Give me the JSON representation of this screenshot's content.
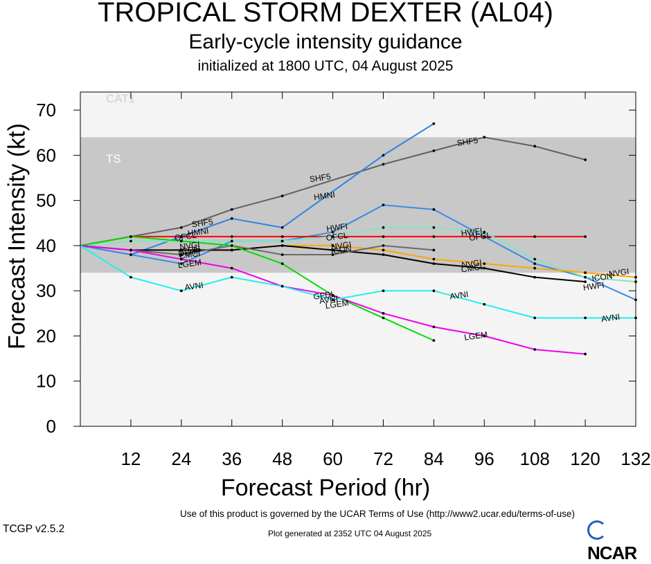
{
  "header": {
    "title": "TROPICAL STORM DEXTER (AL04)",
    "subtitle": "Early-cycle intensity guidance",
    "initialized": "initialized at 1800 UTC, 04 August 2025"
  },
  "footer": {
    "terms": "Use of this product is governed by the UCAR Terms of Use (http://www2.ucar.edu/terms-of-use)",
    "version": "TCGP v2.5.2",
    "generated": "Plot generated at 2352 UTC   04 August 2025",
    "logo": "NCAR"
  },
  "colors": {
    "plot_bg": "#f4f4f4",
    "ts_band": "#c8c8c8",
    "band_label": "#e6e6e6"
  },
  "chart_data": {
    "type": "line",
    "xlabel": "Forecast Period (hr)",
    "ylabel": "Forecast Intensity (kt)",
    "xlim": [
      0,
      132
    ],
    "ylim": [
      0,
      74
    ],
    "xticks": [
      12,
      24,
      36,
      48,
      60,
      72,
      84,
      96,
      108,
      120,
      132
    ],
    "yticks": [
      0,
      10,
      20,
      30,
      40,
      50,
      60,
      70
    ],
    "grid": false,
    "bands": [
      {
        "name": "TS",
        "from": 34,
        "to": 64,
        "color": "#c8c8c8"
      },
      {
        "name": "CAT1",
        "from": 64,
        "to": 74,
        "color": "#f4f4f4"
      }
    ],
    "series": [
      {
        "name": "SHF5",
        "color": "#606060",
        "x": [
          0,
          12,
          24,
          36,
          48,
          72,
          84,
          96,
          108,
          120
        ],
        "y": [
          40,
          42,
          44,
          48,
          51,
          58,
          61,
          64,
          62,
          59
        ],
        "labels": [
          [
            29,
            45
          ],
          [
            57,
            55
          ],
          [
            92,
            63
          ]
        ]
      },
      {
        "name": "HMNI",
        "color": "#2f82e6",
        "x": [
          0,
          12,
          24,
          36,
          48,
          72,
          84
        ],
        "y": [
          40,
          38,
          42,
          46,
          44,
          60,
          67
        ],
        "labels": [
          [
            28,
            43
          ],
          [
            58,
            51
          ]
        ]
      },
      {
        "name": "HWFI",
        "color": "#3a8ae8",
        "x": [
          0,
          12,
          24,
          36,
          48,
          60,
          72,
          84,
          96,
          108,
          120,
          132
        ],
        "y": [
          40,
          38,
          36,
          41,
          41,
          43,
          49,
          48,
          42,
          36,
          33,
          28
        ],
        "labels": [
          [
            61,
            44
          ],
          [
            93,
            43
          ],
          [
            122,
            31
          ]
        ]
      },
      {
        "name": "OFCL",
        "color": "#ff0000",
        "x": [
          0,
          12,
          24,
          36,
          48,
          60,
          72,
          84,
          96,
          108,
          120
        ],
        "y": [
          40,
          42,
          42,
          42,
          42,
          42,
          42,
          42,
          42,
          42,
          42
        ],
        "labels": [
          [
            25,
            42
          ],
          [
            61,
            42
          ],
          [
            95,
            42
          ]
        ]
      },
      {
        "name": "ICON",
        "color": "#7fe6c0",
        "x": [
          0,
          12,
          24,
          36,
          48,
          60,
          72,
          84,
          96,
          108,
          120,
          132
        ],
        "y": [
          40,
          41,
          41,
          41,
          41,
          42,
          44,
          44,
          43,
          37,
          33,
          32
        ],
        "labels": [
          [
            26,
            39
          ],
          [
            62,
            39
          ],
          [
            124,
            33
          ]
        ]
      },
      {
        "name": "NVGI",
        "color": "#ffa500",
        "x": [
          0,
          12,
          24,
          36,
          48,
          60,
          72,
          84,
          96,
          108,
          120,
          132
        ],
        "y": [
          40,
          39,
          39,
          39,
          40,
          40,
          39,
          37,
          36,
          35,
          34,
          33
        ],
        "labels": [
          [
            26,
            40
          ],
          [
            62,
            40
          ],
          [
            93,
            36
          ],
          [
            128,
            34
          ]
        ]
      },
      {
        "name": "CMCI",
        "color": "#000000",
        "x": [
          0,
          12,
          24,
          36,
          48,
          60,
          72,
          84,
          96,
          108,
          120
        ],
        "y": [
          40,
          39,
          39,
          39,
          40,
          39,
          38,
          36,
          35,
          33,
          32
        ],
        "labels": [
          [
            26,
            38
          ],
          [
            93,
            35
          ]
        ]
      },
      {
        "name": "DSHP",
        "color": "#6a6a6a",
        "x": [
          0,
          12,
          24,
          36,
          48,
          60,
          72,
          84
        ],
        "y": [
          40,
          39,
          38,
          40,
          38,
          38,
          40,
          39
        ],
        "labels": [
          [
            26,
            38.5
          ]
        ]
      },
      {
        "name": "GFDL",
        "color": "#00dd00",
        "x": [
          0,
          12,
          24,
          36,
          48,
          60,
          72,
          84
        ],
        "y": [
          40,
          42,
          41,
          40,
          36,
          29,
          24,
          19
        ],
        "labels": [
          [
            58,
            29
          ]
        ]
      },
      {
        "name": "LGEM",
        "color": "#ee00ee",
        "x": [
          0,
          12,
          24,
          36,
          48,
          60,
          72,
          84,
          96,
          108,
          120
        ],
        "y": [
          40,
          39,
          37,
          35,
          31,
          29,
          25,
          22,
          20,
          17,
          16
        ],
        "labels": [
          [
            26,
            36
          ],
          [
            61,
            27
          ],
          [
            94,
            20
          ]
        ]
      },
      {
        "name": "AVNI",
        "color": "#22eeee",
        "x": [
          0,
          12,
          24,
          36,
          48,
          60,
          72,
          84,
          96,
          108,
          120,
          132
        ],
        "y": [
          40,
          33,
          30,
          33,
          31,
          28,
          30,
          30,
          27,
          24,
          24,
          24
        ],
        "labels": [
          [
            27,
            31
          ],
          [
            59,
            28
          ],
          [
            90,
            29
          ],
          [
            126,
            24
          ]
        ]
      }
    ]
  }
}
